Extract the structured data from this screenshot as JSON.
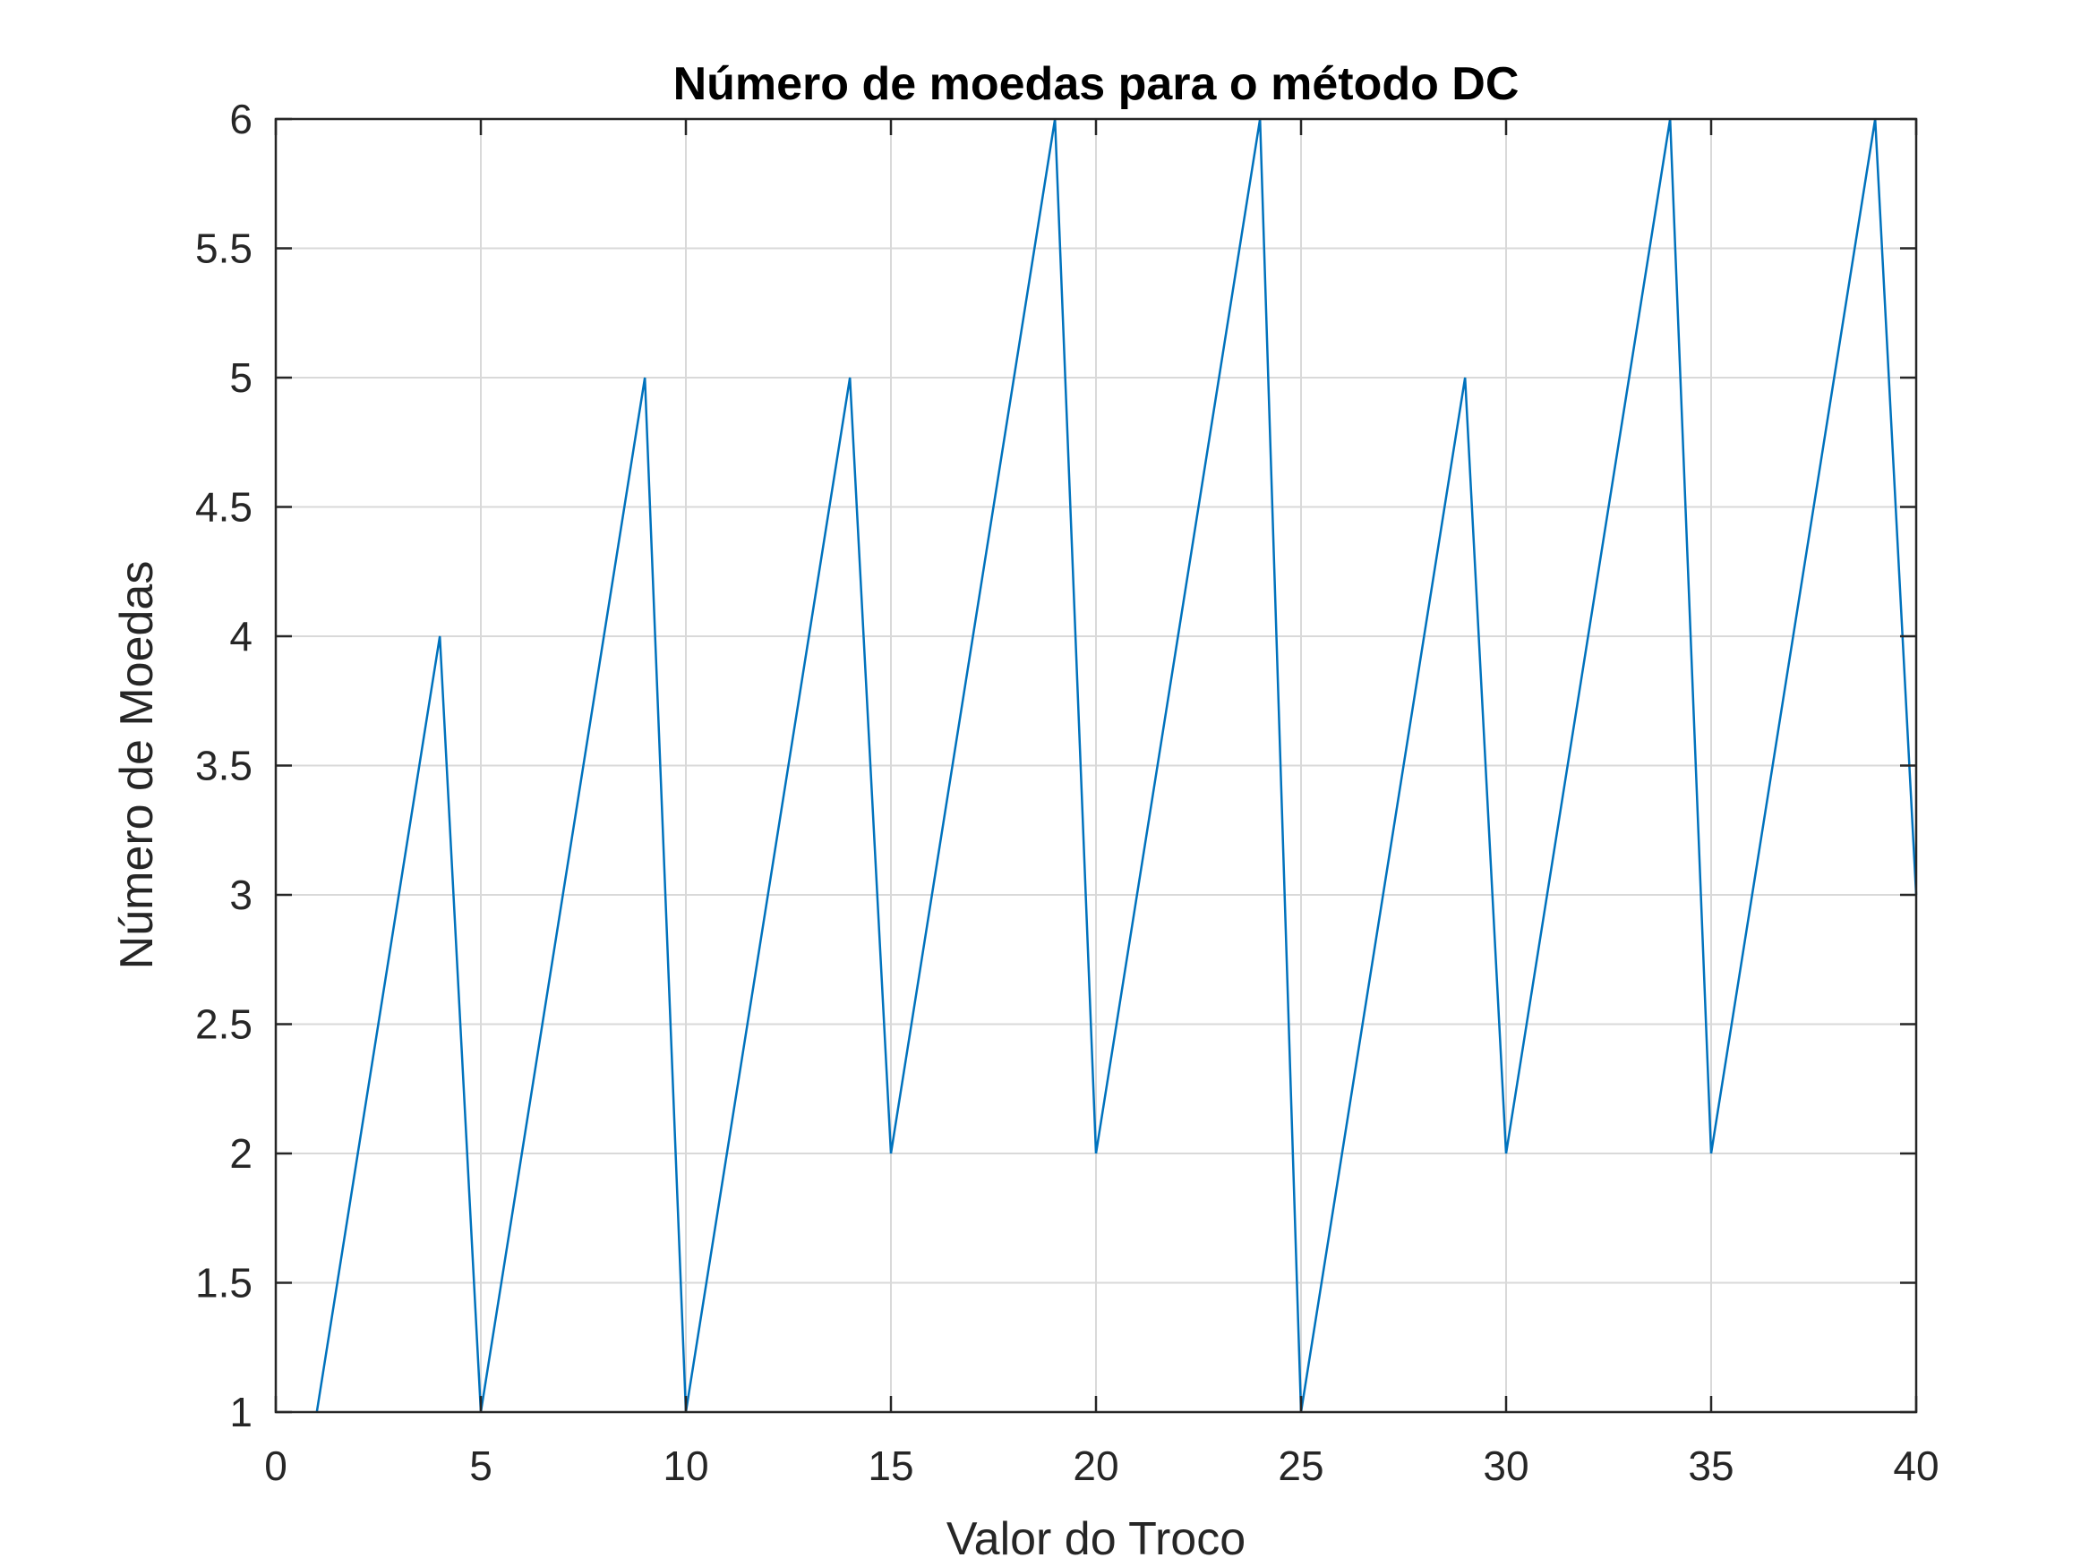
{
  "chart_data": {
    "type": "line",
    "title": "Número de moedas para o método DC",
    "xlabel": "Valor do Troco",
    "ylabel": "Número de Moedas",
    "xlim": [
      0,
      40
    ],
    "ylim": [
      1,
      6
    ],
    "xticks": [
      0,
      5,
      10,
      15,
      20,
      25,
      30,
      35,
      40
    ],
    "yticks": [
      1,
      1.5,
      2,
      2.5,
      3,
      3.5,
      4,
      4.5,
      5,
      5.5,
      6
    ],
    "xtick_labels": [
      "0",
      "5",
      "10",
      "15",
      "20",
      "25",
      "30",
      "35",
      "40"
    ],
    "ytick_labels": [
      "1",
      "1.5",
      "2",
      "2.5",
      "3",
      "3.5",
      "4",
      "4.5",
      "5",
      "5.5",
      "6"
    ],
    "grid": true,
    "legend": "none",
    "series": [
      {
        "color": "#0072BD",
        "x": [
          1,
          2,
          3,
          4,
          5,
          6,
          7,
          8,
          9,
          10,
          11,
          12,
          13,
          14,
          15,
          16,
          17,
          18,
          19,
          20,
          21,
          22,
          23,
          24,
          25,
          26,
          27,
          28,
          29,
          30,
          31,
          32,
          33,
          34,
          35,
          36,
          37,
          38,
          39,
          40
        ],
        "y": [
          1,
          2,
          3,
          4,
          1,
          2,
          3,
          4,
          5,
          1,
          2,
          3,
          4,
          5,
          2,
          3,
          4,
          5,
          6,
          2,
          3,
          4,
          5,
          6,
          1,
          2,
          3,
          4,
          5,
          2,
          3,
          4,
          5,
          6,
          2,
          3,
          4,
          5,
          6,
          3
        ]
      }
    ]
  }
}
